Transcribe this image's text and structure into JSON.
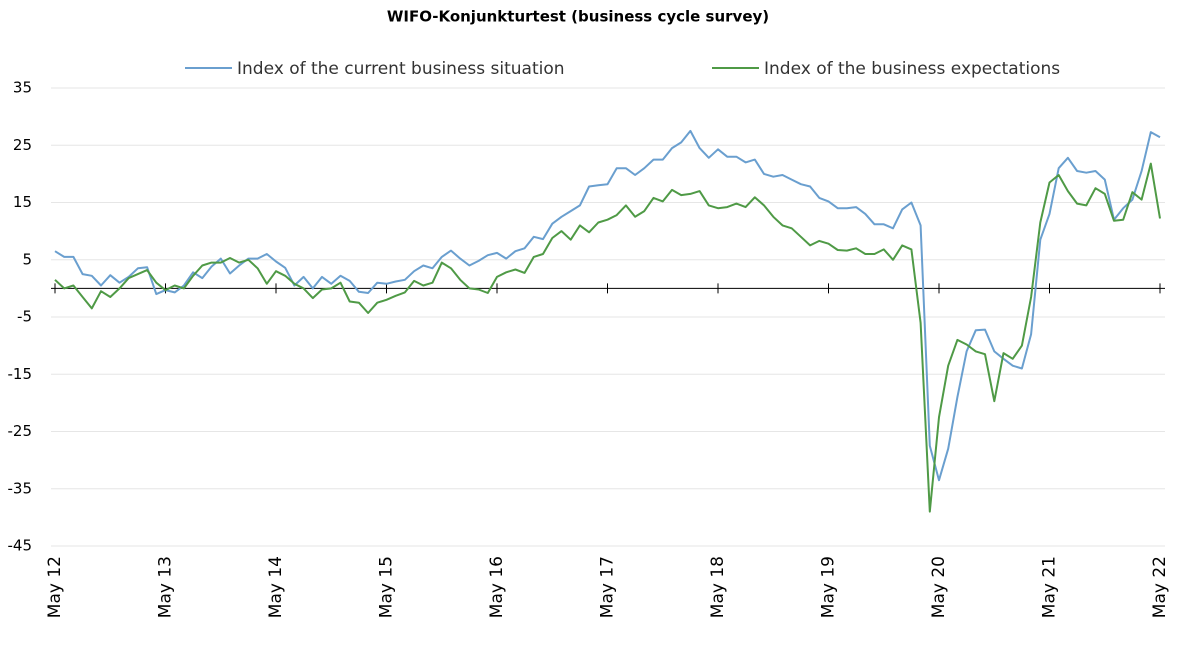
{
  "chart_data": {
    "type": "line",
    "title": "WIFO-Konjunkturtest (business cycle survey)",
    "categories": [
      "May 12",
      null,
      null,
      null,
      null,
      null,
      null,
      null,
      null,
      null,
      null,
      null,
      "May 13",
      null,
      null,
      null,
      null,
      null,
      null,
      null,
      null,
      null,
      null,
      null,
      "May 14",
      null,
      null,
      null,
      null,
      null,
      null,
      null,
      null,
      null,
      null,
      null,
      "May 15",
      null,
      null,
      null,
      null,
      null,
      null,
      null,
      null,
      null,
      null,
      null,
      "May 16",
      null,
      null,
      null,
      null,
      null,
      null,
      null,
      null,
      null,
      null,
      null,
      "May 17",
      null,
      null,
      null,
      null,
      null,
      null,
      null,
      null,
      null,
      null,
      null,
      "May 18",
      null,
      null,
      null,
      null,
      null,
      null,
      null,
      null,
      null,
      null,
      null,
      "May 19",
      null,
      null,
      null,
      null,
      null,
      null,
      null,
      null,
      null,
      null,
      null,
      "May 20",
      null,
      null,
      null,
      null,
      null,
      null,
      null,
      null,
      null,
      null,
      null,
      "May 21",
      null,
      null,
      null,
      null,
      null,
      null,
      null,
      null,
      null,
      null,
      null,
      "May 22"
    ],
    "series": [
      {
        "name": "Index of the current business situation",
        "color": "#6a9fcf",
        "values": [
          6.5,
          5.5,
          5.5,
          2.5,
          2.2,
          0.5,
          2.3,
          1.0,
          2.0,
          3.5,
          3.7,
          -1.0,
          -0.3,
          -0.7,
          0.5,
          2.8,
          1.8,
          3.8,
          5.2,
          2.6,
          4.0,
          5.2,
          5.2,
          6.0,
          4.7,
          3.6,
          0.5,
          2.0,
          0.0,
          2.0,
          0.8,
          2.2,
          1.3,
          -0.6,
          -0.8,
          1.0,
          0.8,
          1.2,
          1.5,
          3.0,
          4.0,
          3.5,
          5.5,
          6.6,
          5.2,
          4.0,
          4.8,
          5.8,
          6.2,
          5.2,
          6.5,
          7.0,
          9.0,
          8.6,
          11.3,
          12.5,
          13.5,
          14.5,
          17.8,
          18.0,
          18.2,
          21.0,
          21.0,
          19.8,
          21.0,
          22.5,
          22.5,
          24.5,
          25.5,
          27.5,
          24.5,
          22.8,
          24.3,
          23.0,
          23.0,
          22.0,
          22.5,
          20.0,
          19.5,
          19.8,
          19.0,
          18.2,
          17.8,
          15.8,
          15.2,
          14.0,
          14.0,
          14.2,
          13.0,
          11.2,
          11.2,
          10.5,
          13.8,
          15.0,
          11.0,
          -27.5,
          -33.5,
          -28.0,
          -19.0,
          -11.0,
          -7.3,
          -7.2,
          -11.0,
          -12.3,
          -13.5,
          -14.0,
          -8.0,
          8.5,
          13.0,
          21.0,
          22.8,
          20.5,
          20.2,
          20.5,
          19.0,
          12.0,
          14.0,
          15.5,
          20.5,
          27.3,
          26.4
        ]
      },
      {
        "name": "Index of the business expectations",
        "color": "#4f9a46",
        "values": [
          1.5,
          0.0,
          0.5,
          -1.5,
          -3.5,
          -0.5,
          -1.5,
          0.0,
          1.8,
          2.5,
          3.2,
          1.0,
          -0.3,
          0.5,
          0.0,
          2.2,
          4.0,
          4.5,
          4.5,
          5.3,
          4.5,
          5.0,
          3.5,
          0.8,
          3.0,
          2.2,
          0.8,
          0.0,
          -1.7,
          -0.2,
          0.0,
          1.0,
          -2.3,
          -2.5,
          -4.3,
          -2.5,
          -2.0,
          -1.3,
          -0.7,
          1.3,
          0.5,
          1.0,
          4.5,
          3.5,
          1.5,
          0.0,
          -0.2,
          -0.8,
          2.0,
          2.8,
          3.3,
          2.7,
          5.5,
          6.0,
          8.8,
          10.0,
          8.5,
          11.0,
          9.8,
          11.5,
          12.0,
          12.8,
          14.5,
          12.5,
          13.5,
          15.8,
          15.2,
          17.2,
          16.3,
          16.5,
          17.0,
          14.5,
          14.0,
          14.2,
          14.8,
          14.2,
          15.9,
          14.5,
          12.5,
          11.0,
          10.5,
          9.0,
          7.5,
          8.3,
          7.8,
          6.7,
          6.6,
          7.0,
          6.0,
          6.0,
          6.8,
          5.0,
          7.5,
          6.8,
          -6.0,
          -39.0,
          -22.5,
          -13.5,
          -9.0,
          -9.8,
          -11.0,
          -11.5,
          -19.7,
          -11.3,
          -12.3,
          -10.0,
          -1.5,
          11.5,
          18.5,
          19.8,
          17.0,
          14.8,
          14.5,
          17.5,
          16.5,
          11.8,
          12.0,
          16.8,
          15.5,
          21.8,
          12.2
        ]
      }
    ],
    "ylim": [
      -45,
      35
    ],
    "yticks": [
      35,
      25,
      15,
      5,
      -5,
      -15,
      -25,
      -35,
      -45
    ],
    "grid": true
  }
}
